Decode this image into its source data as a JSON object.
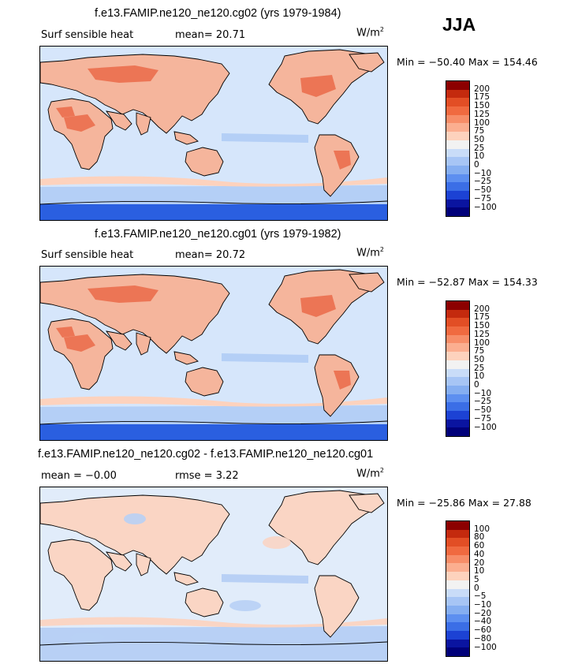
{
  "season": "JJA",
  "panels": [
    {
      "title": "f.e13.FAMIP.ne120_ne120.cg02 (yrs 1979-1984)",
      "variable": "Surf sensible heat",
      "stat1": "mean=  20.71",
      "stat2": "",
      "units": "W/m",
      "units_sup": "2",
      "minmax": "Min = −50.40 Max = 154.46",
      "levels": [
        "200",
        "175",
        "150",
        "125",
        "100",
        "75",
        "50",
        "25",
        "10",
        "0",
        "−10",
        "−25",
        "−50",
        "−75",
        "−100"
      ]
    },
    {
      "title": "f.e13.FAMIP.ne120_ne120.cg01 (yrs 1979-1982)",
      "variable": "Surf sensible heat",
      "stat1": "mean=  20.72",
      "stat2": "",
      "units": "W/m",
      "units_sup": "2",
      "minmax": "Min = −52.87 Max = 154.33",
      "levels": [
        "200",
        "175",
        "150",
        "125",
        "100",
        "75",
        "50",
        "25",
        "10",
        "0",
        "−10",
        "−25",
        "−50",
        "−75",
        "−100"
      ]
    },
    {
      "title": "f.e13.FAMIP.ne120_ne120.cg02 - f.e13.FAMIP.ne120_ne120.cg01",
      "variable": "mean =  −0.00",
      "stat1": "rmse =    3.22",
      "stat2": "",
      "units": "W/m",
      "units_sup": "2",
      "minmax": "Min = −25.86 Max =  27.88",
      "levels": [
        "100",
        "80",
        "60",
        "40",
        "20",
        "10",
        "5",
        "0",
        "−5",
        "−10",
        "−20",
        "−40",
        "−60",
        "−80",
        "−100"
      ]
    }
  ],
  "colors": {
    "palette": [
      "#8c0000",
      "#c42a0e",
      "#e24e25",
      "#f06a40",
      "#f78d68",
      "#fbae90",
      "#fdd2bd",
      "#f2f2f2",
      "#c9dcf8",
      "#a7c5f5",
      "#85aef1",
      "#5d8ff0",
      "#3b6ee6",
      "#1c42d4",
      "#0a14a0",
      "#00007a"
    ],
    "land_warm": "#f5b59c",
    "land_hot": "#e8603e",
    "ocean": "#d6e6fb",
    "ocean_cool": "#b4cff6",
    "antarctic": "#2a5fe0",
    "diff_ocean": "#e1ecfa",
    "diff_warm": "#fad5c4",
    "diff_cool": "#b8d0f5"
  }
}
